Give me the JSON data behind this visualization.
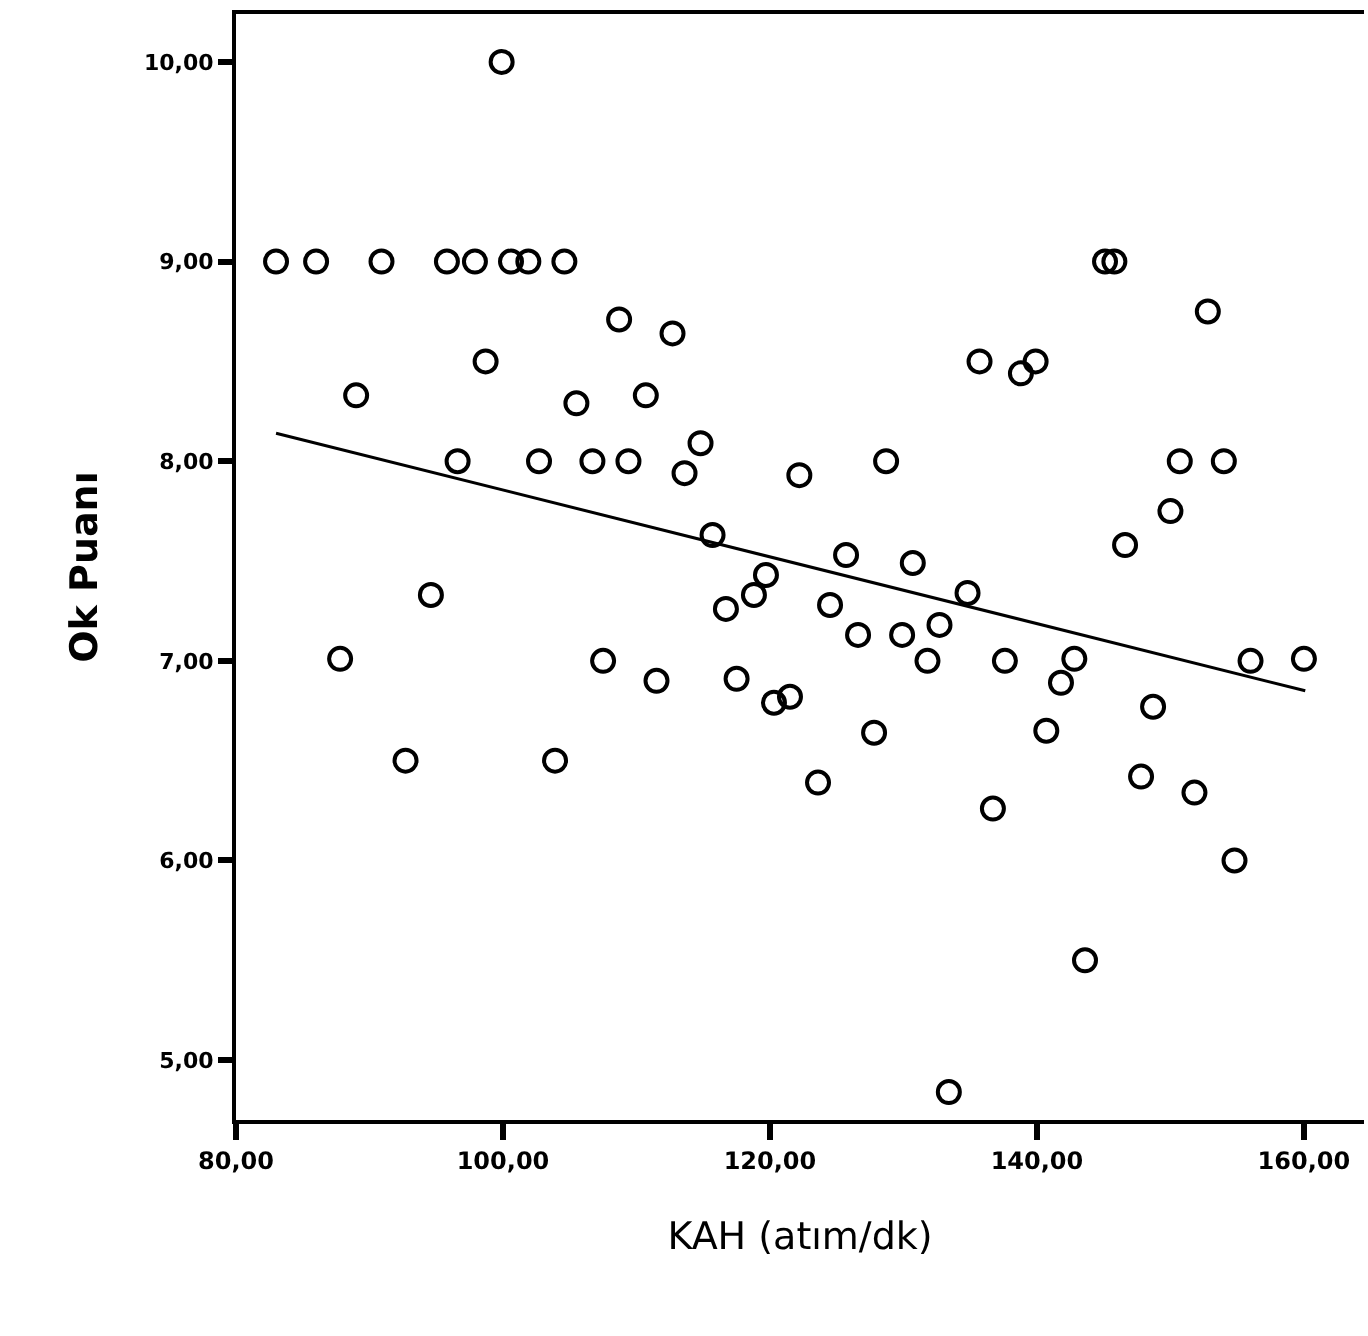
{
  "chart_data": {
    "type": "scatter",
    "xlabel": "KAH (atım/dk)",
    "ylabel": "Ok Puanı",
    "xlim": [
      80,
      164.5
    ],
    "ylim": [
      4.7,
      10.24
    ],
    "xticks": [
      {
        "value": 80,
        "label": "80,00"
      },
      {
        "value": 100,
        "label": "100,00"
      },
      {
        "value": 120,
        "label": "120,00"
      },
      {
        "value": 140,
        "label": "140,00"
      },
      {
        "value": 160,
        "label": "160,00"
      }
    ],
    "yticks": [
      {
        "value": 5,
        "label": "5,00"
      },
      {
        "value": 6,
        "label": "6,00"
      },
      {
        "value": 7,
        "label": "7,00"
      },
      {
        "value": 8,
        "label": "8,00"
      },
      {
        "value": 9,
        "label": "9,00"
      },
      {
        "value": 10,
        "label": "10,00"
      }
    ],
    "marker": "circle",
    "series": [
      {
        "color": "#000000",
        "x": [
          83.0,
          86.0,
          90.9,
          95.8,
          97.9,
          100.6,
          101.9,
          104.6,
          99.9,
          108.7,
          112.7,
          98.7,
          89.0,
          105.5,
          110.7,
          114.8,
          96.6,
          102.7,
          106.7,
          109.4,
          113.6,
          115.7,
          119.7,
          118.8,
          116.7,
          94.6,
          87.8,
          107.5,
          111.5,
          117.5,
          120.3,
          121.5,
          92.7,
          103.9,
          122.2,
          128.7,
          125.7,
          130.7,
          134.8,
          124.5,
          126.6,
          129.9,
          132.7,
          131.8,
          137.6,
          142.8,
          141.8,
          156.0,
          160.0,
          135.7,
          138.8,
          139.9,
          145.1,
          145.8,
          152.8,
          150.7,
          154.0,
          150.0,
          146.6,
          127.8,
          123.6,
          136.7,
          140.7,
          148.7,
          147.8,
          151.8,
          154.8,
          143.6,
          133.4
        ],
        "values": [
          9.0,
          9.0,
          9.0,
          9.0,
          9.0,
          9.0,
          9.0,
          9.0,
          10.0,
          8.71,
          8.64,
          8.5,
          8.33,
          8.29,
          8.33,
          8.09,
          8.0,
          8.0,
          8.0,
          8.0,
          7.94,
          7.63,
          7.43,
          7.33,
          7.26,
          7.33,
          7.01,
          7.0,
          6.9,
          6.91,
          6.79,
          6.82,
          6.5,
          6.5,
          7.93,
          8.0,
          7.53,
          7.49,
          7.34,
          7.28,
          7.13,
          7.13,
          7.18,
          7.0,
          7.0,
          7.01,
          6.89,
          7.0,
          7.01,
          8.5,
          8.44,
          8.5,
          9.0,
          9.0,
          8.75,
          8.0,
          8.0,
          7.75,
          7.58,
          6.64,
          6.39,
          6.26,
          6.65,
          6.77,
          6.42,
          6.34,
          6.0,
          5.5,
          4.84
        ]
      },
      {
        "type": "line",
        "color": "#000000",
        "marker": "none",
        "line_style": "solid",
        "x": [
          83.0,
          160.1
        ],
        "values": [
          8.14,
          6.85
        ]
      }
    ]
  }
}
